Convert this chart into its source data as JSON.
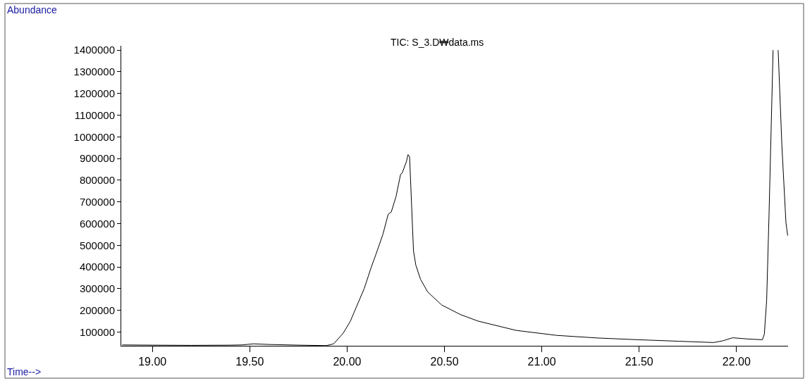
{
  "chart_data": {
    "type": "line",
    "title": "TIC: S_3.D₩data.ms",
    "xlabel": "Time-->",
    "ylabel": "Abundance",
    "xlim": [
      18.84,
      22.265
    ],
    "ylim": [
      37000,
      1420000
    ],
    "xticks": [
      {
        "value": 19,
        "label": "19.00"
      },
      {
        "value": 19.5,
        "label": "19.50"
      },
      {
        "value": 20,
        "label": "20.00"
      },
      {
        "value": 20.5,
        "label": "20.50"
      },
      {
        "value": 21,
        "label": "21.00"
      },
      {
        "value": 21.5,
        "label": "21.50"
      },
      {
        "value": 22,
        "label": "22.00"
      }
    ],
    "yticks": [
      100000,
      200000,
      300000,
      400000,
      500000,
      600000,
      700000,
      800000,
      900000,
      1000000,
      1100000,
      1200000,
      1300000,
      1400000
    ],
    "marker": "none",
    "line_style": "solid",
    "series": [
      {
        "color": "#000000",
        "x": [
          18.845,
          19.0,
          19.2,
          19.4,
          19.46,
          19.52,
          19.6,
          19.75,
          19.88,
          19.895,
          19.931,
          19.98,
          20.016,
          20.052,
          20.088,
          20.124,
          20.148,
          20.184,
          20.211,
          20.227,
          20.251,
          20.275,
          20.283,
          20.305,
          20.313,
          20.321,
          20.341,
          20.353,
          20.377,
          20.414,
          20.486,
          20.534,
          20.582,
          20.672,
          20.868,
          21.076,
          21.285,
          21.494,
          21.702,
          21.882,
          21.93,
          21.98,
          22.063,
          22.133,
          22.143,
          22.155,
          22.167,
          22.188,
          22.2,
          22.214,
          22.233,
          22.254,
          22.263
        ],
        "values": [
          41000,
          40000,
          39000,
          40000,
          41000,
          46000,
          43000,
          40000,
          38000,
          38000,
          46000,
          95000,
          149000,
          225000,
          301000,
          399000,
          458000,
          551000,
          643000,
          654000,
          724000,
          828000,
          833000,
          887000,
          918000,
          909000,
          475000,
          409000,
          344000,
          285000,
          225000,
          203000,
          181000,
          151000,
          108000,
          85000,
          73000,
          65000,
          58000,
          52000,
          60000,
          74000,
          68000,
          65000,
          90000,
          247000,
          637000,
          1400000,
          null,
          1400000,
          963000,
          605000,
          545000
        ]
      }
    ]
  }
}
